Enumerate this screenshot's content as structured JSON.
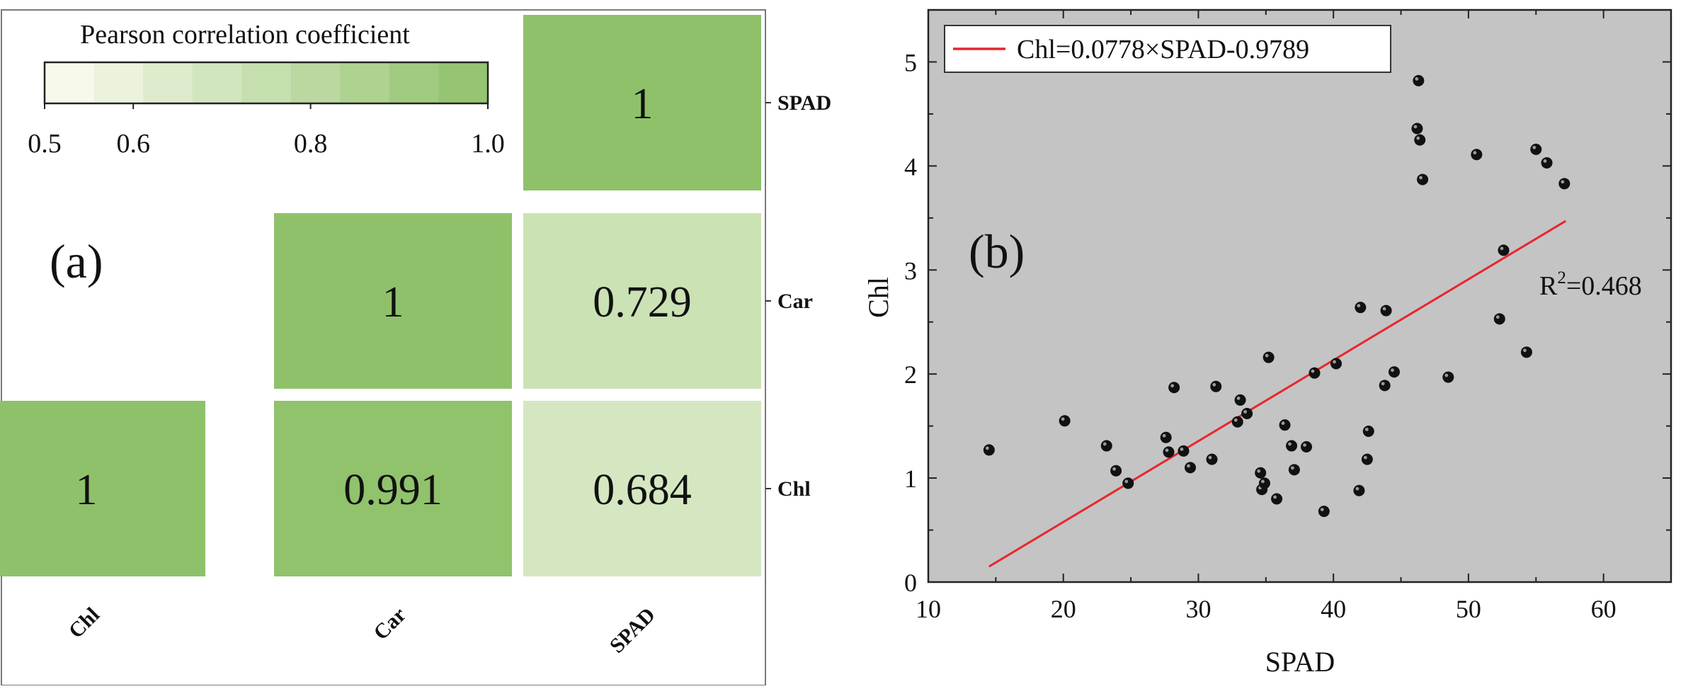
{
  "chart_data": [
    {
      "type": "heatmap",
      "panel_label": "(a)",
      "legend": {
        "title": "Pearson correlation coefficient",
        "range": [
          0.5,
          1.0
        ],
        "tick_labels": [
          "0.5",
          "0.6",
          "0.8",
          "1.0"
        ],
        "tick_values": [
          0.5,
          0.6,
          0.8,
          1.0
        ],
        "steps": 9,
        "color_low": "#fdfdf3",
        "color_high": "#8fc16a"
      },
      "x_labels": [
        "Chl",
        "Car",
        "SPAD"
      ],
      "y_labels": [
        "Chl",
        "Car",
        "SPAD"
      ],
      "cells": [
        {
          "row": "SPAD",
          "col": "SPAD",
          "value": 1,
          "label": "1"
        },
        {
          "row": "Car",
          "col": "Car",
          "value": 1,
          "label": "1"
        },
        {
          "row": "Car",
          "col": "SPAD",
          "value": 0.729,
          "label": "0.729"
        },
        {
          "row": "Chl",
          "col": "Chl",
          "value": 1,
          "label": "1"
        },
        {
          "row": "Chl",
          "col": "Car",
          "value": 0.991,
          "label": "0.991"
        },
        {
          "row": "Chl",
          "col": "SPAD",
          "value": 0.684,
          "label": "0.684"
        }
      ]
    },
    {
      "type": "scatter",
      "panel_label": "(b)",
      "xlabel": "SPAD",
      "ylabel": "Chl",
      "xlim": [
        10,
        65
      ],
      "ylim": [
        0,
        5.5
      ],
      "xticks": [
        10,
        20,
        30,
        40,
        50,
        60
      ],
      "yticks": [
        0,
        1,
        2,
        3,
        4,
        5
      ],
      "background": "#c4c4c4",
      "point_color": "#111111",
      "fit": {
        "legend_label": "Chl=0.0778×SPAD-0.9789",
        "slope": 0.0778,
        "intercept": -0.9789,
        "x_range": [
          14.5,
          57.2
        ],
        "color": "#e8262b",
        "r2_label": "R",
        "r2_sup": "2",
        "r2_value": "=0.468"
      },
      "points": [
        [
          14.5,
          1.27
        ],
        [
          20.1,
          1.55
        ],
        [
          23.2,
          1.31
        ],
        [
          23.9,
          1.07
        ],
        [
          24.8,
          0.95
        ],
        [
          27.6,
          1.39
        ],
        [
          27.8,
          1.25
        ],
        [
          28.2,
          1.87
        ],
        [
          28.9,
          1.26
        ],
        [
          29.4,
          1.1
        ],
        [
          31.0,
          1.18
        ],
        [
          31.3,
          1.88
        ],
        [
          32.9,
          1.54
        ],
        [
          33.1,
          1.75
        ],
        [
          33.6,
          1.62
        ],
        [
          35.2,
          2.16
        ],
        [
          34.6,
          1.05
        ],
        [
          34.7,
          0.89
        ],
        [
          34.9,
          0.95
        ],
        [
          35.8,
          0.8
        ],
        [
          36.4,
          1.51
        ],
        [
          36.9,
          1.31
        ],
        [
          37.1,
          1.08
        ],
        [
          38.0,
          1.3
        ],
        [
          38.6,
          2.01
        ],
        [
          39.3,
          0.68
        ],
        [
          40.2,
          2.1
        ],
        [
          41.9,
          0.88
        ],
        [
          42.0,
          2.64
        ],
        [
          42.5,
          1.18
        ],
        [
          42.6,
          1.45
        ],
        [
          43.8,
          1.89
        ],
        [
          43.9,
          2.61
        ],
        [
          44.5,
          2.02
        ],
        [
          46.3,
          4.82
        ],
        [
          46.2,
          4.36
        ],
        [
          46.4,
          4.25
        ],
        [
          46.6,
          3.87
        ],
        [
          48.5,
          1.97
        ],
        [
          50.6,
          4.11
        ],
        [
          52.3,
          2.53
        ],
        [
          52.6,
          3.19
        ],
        [
          54.3,
          2.21
        ],
        [
          55.0,
          4.16
        ],
        [
          55.8,
          4.03
        ],
        [
          57.1,
          3.83
        ]
      ]
    }
  ]
}
